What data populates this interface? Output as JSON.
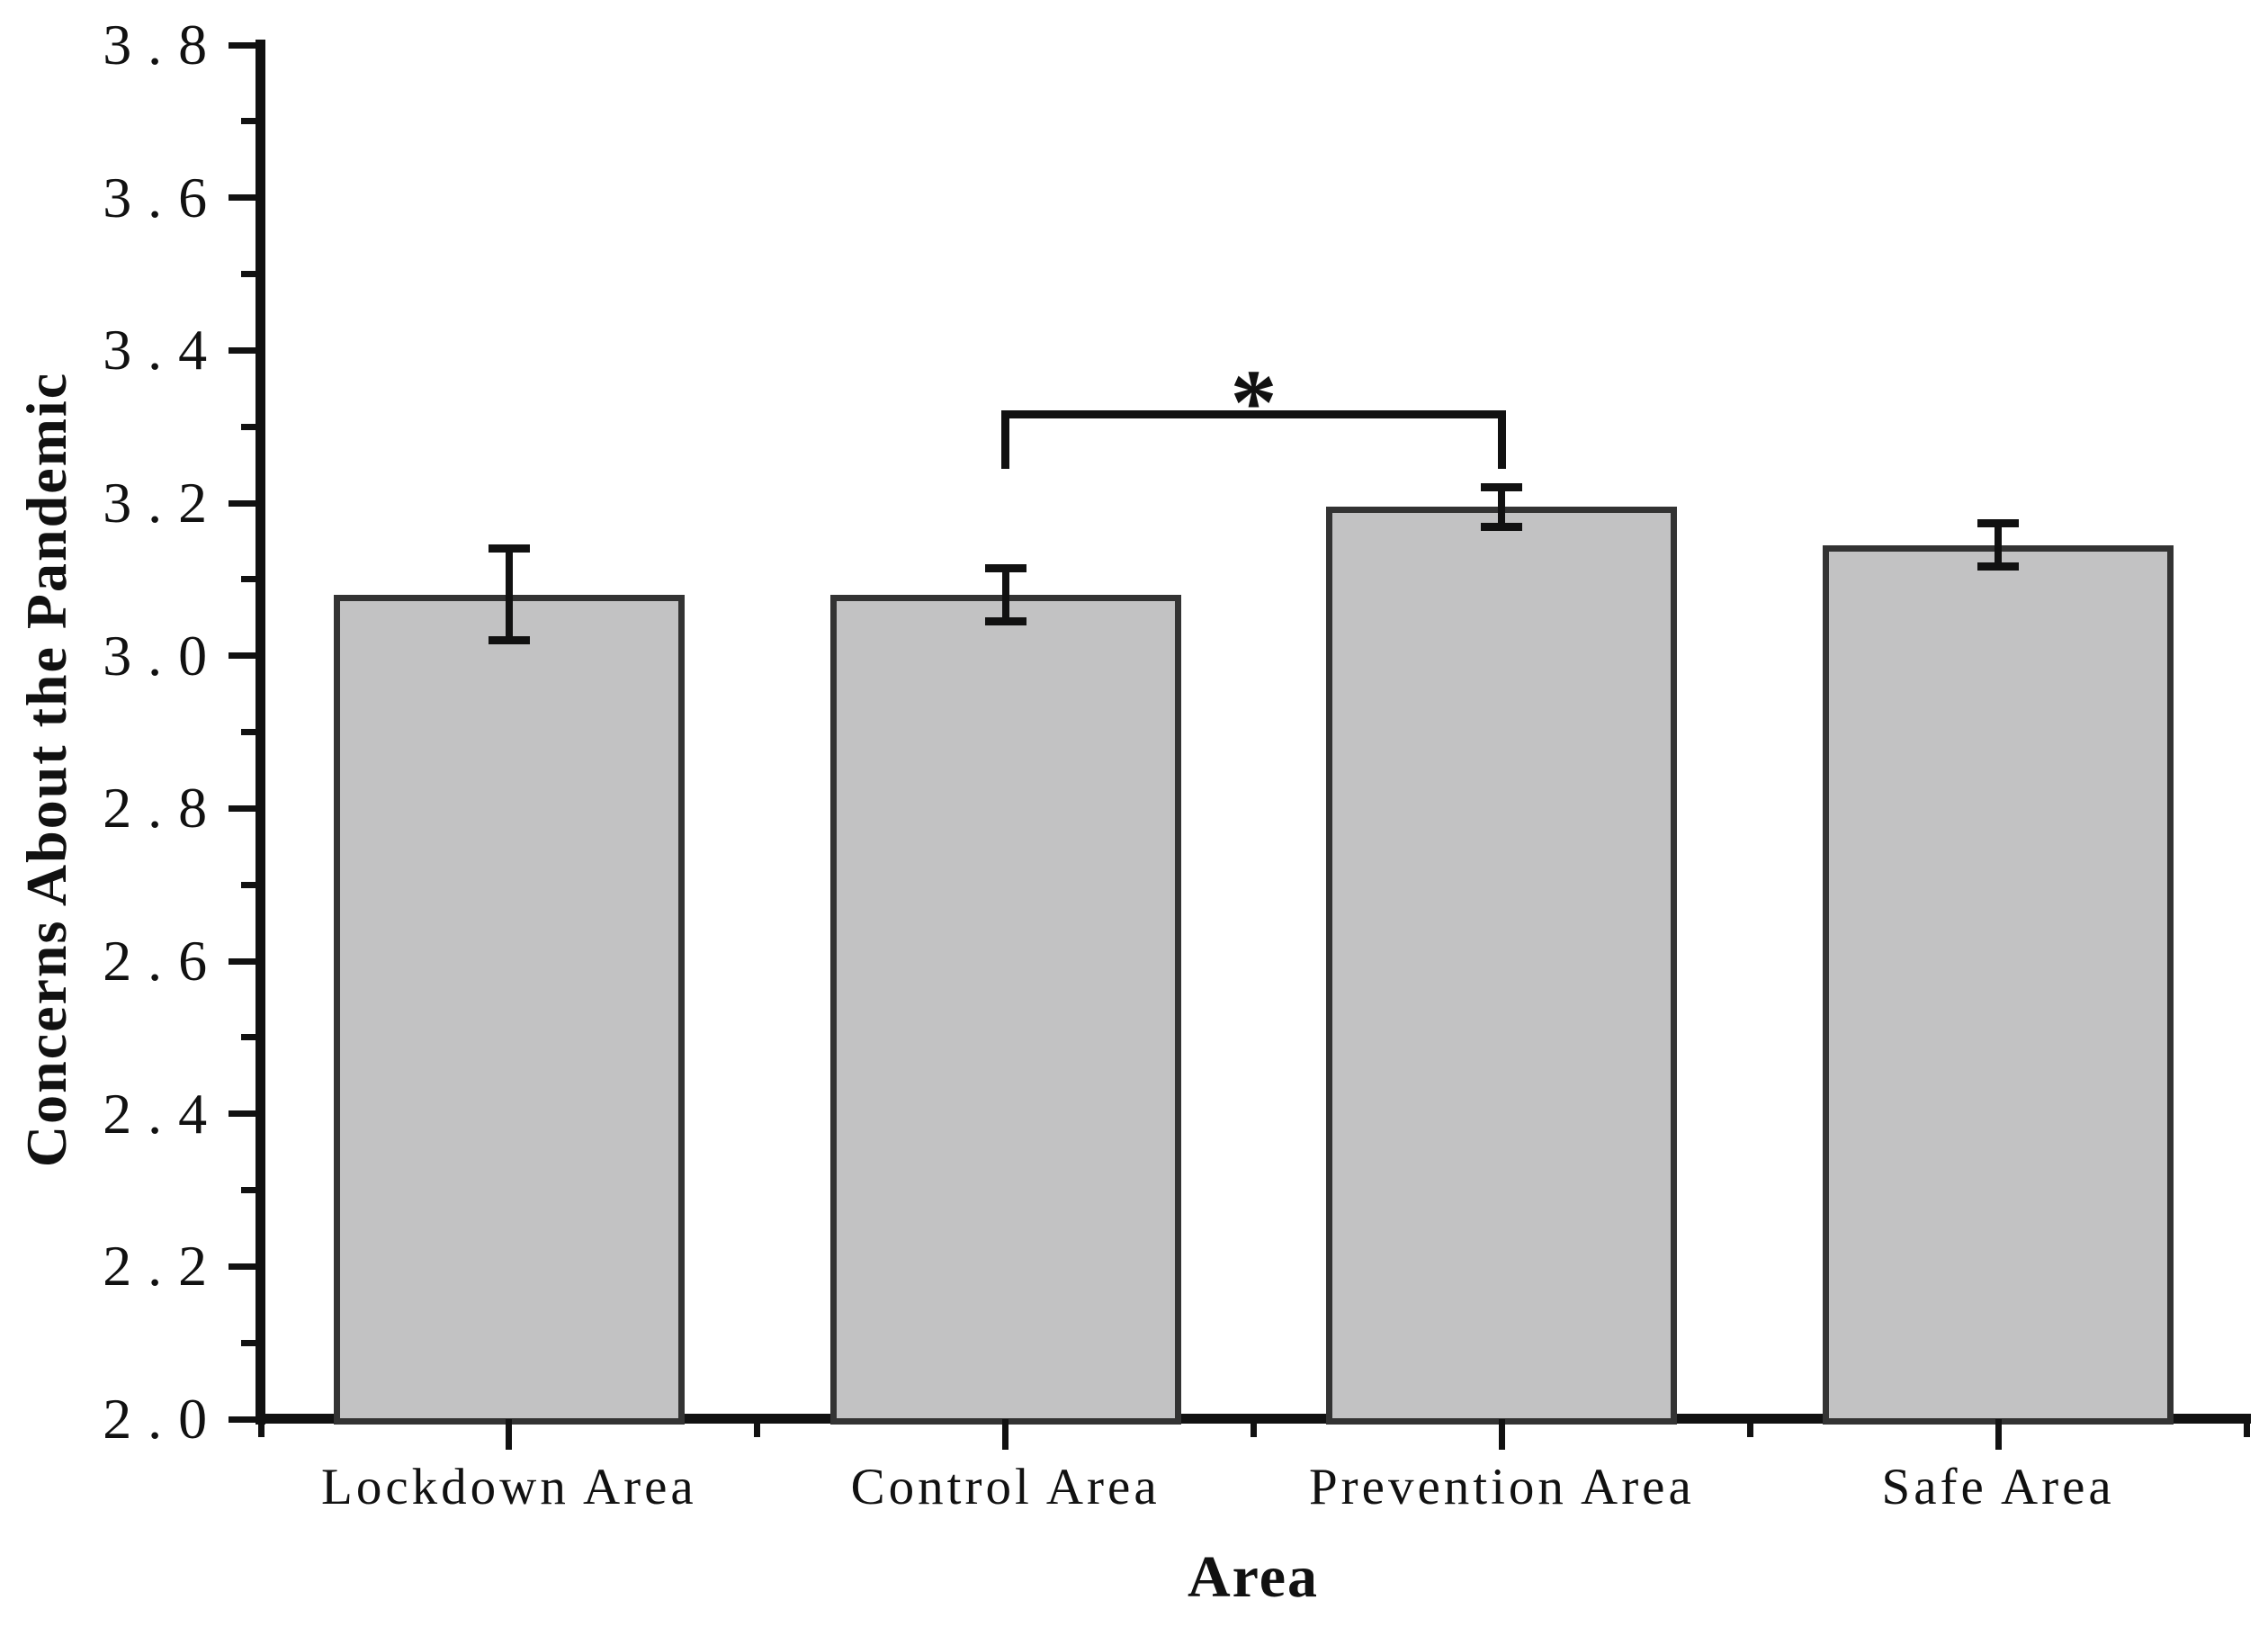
{
  "chart_data": {
    "type": "bar",
    "title": "",
    "xlabel": "Area",
    "ylabel": "Concerns About the Pandemic",
    "categories": [
      "Lockdown Area",
      "Control Area",
      "Prevention Area",
      "Safe Area"
    ],
    "values": [
      3.08,
      3.08,
      3.195,
      3.145
    ],
    "error_bars": [
      0.06,
      0.035,
      0.026,
      0.028
    ],
    "ylim": [
      2.0,
      3.8
    ],
    "ytick_step": 0.2,
    "ytick_minor_step": 0.1,
    "ytick_labels": [
      "3.8",
      "3.6",
      "3.4",
      "3.2",
      "3.0",
      "2.8",
      "2.6",
      "2.4",
      "2.2",
      "2.0"
    ],
    "grid": false,
    "legend": false,
    "bar_fill": "#c2c2c3",
    "bar_border": "#333333",
    "axis_color": "#111111",
    "significance": {
      "label": "*",
      "between": [
        "Control Area",
        "Prevention Area"
      ],
      "from_index": 1,
      "to_index": 2
    }
  }
}
